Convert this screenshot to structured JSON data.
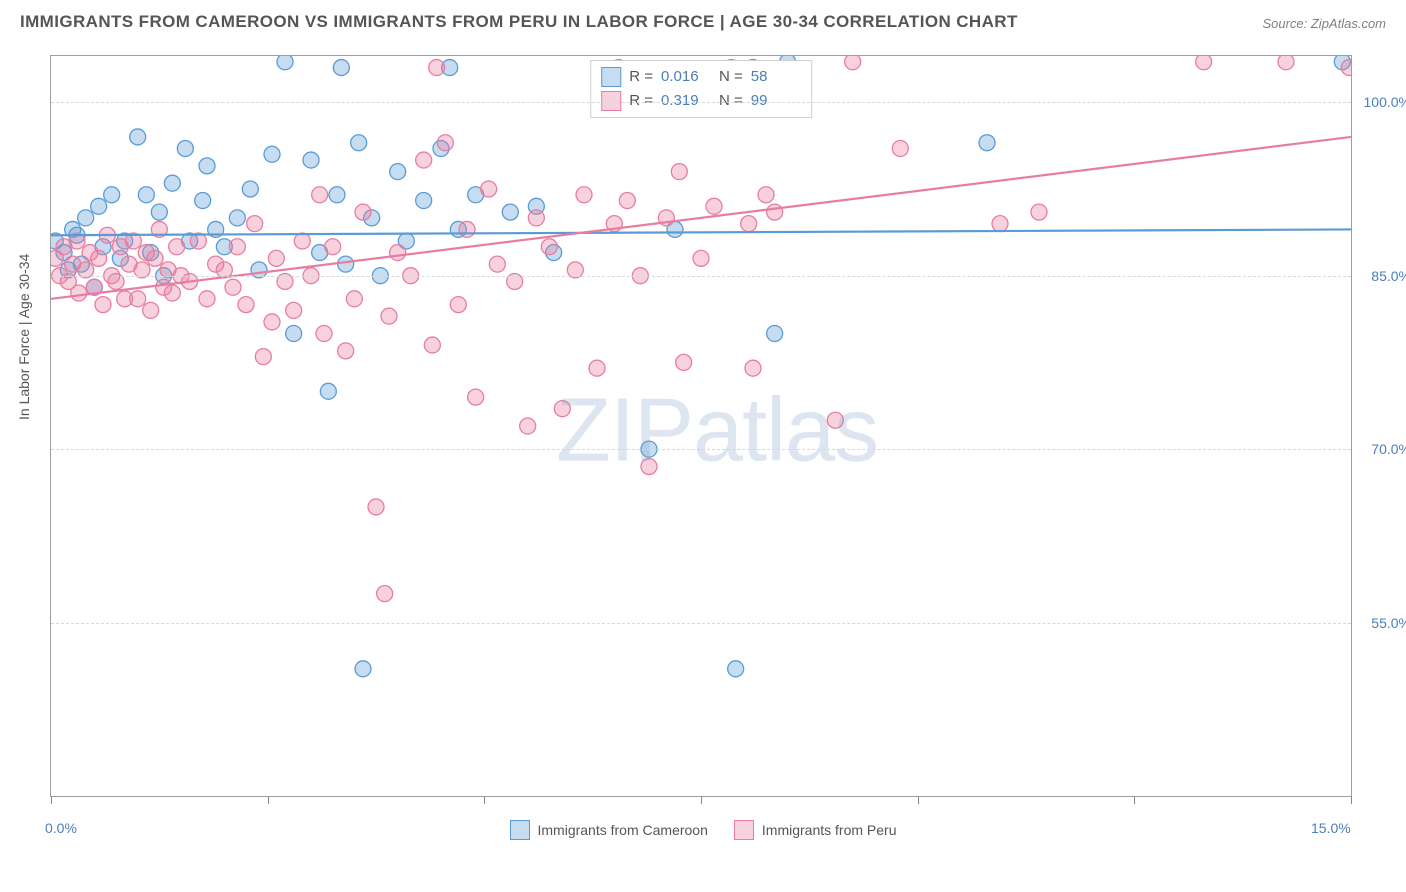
{
  "title": "IMMIGRANTS FROM CAMEROON VS IMMIGRANTS FROM PERU IN LABOR FORCE | AGE 30-34 CORRELATION CHART",
  "source": "Source: ZipAtlas.com",
  "yaxis_title": "In Labor Force | Age 30-34",
  "watermark": "ZIPatlas",
  "chart": {
    "type": "scatter",
    "xlim": [
      0,
      15
    ],
    "ylim": [
      40,
      104
    ],
    "ytick_values": [
      55,
      70,
      85,
      100
    ],
    "ytick_labels": [
      "55.0%",
      "70.0%",
      "85.0%",
      "100.0%"
    ],
    "xtick_values": [
      0,
      2.5,
      5,
      7.5,
      10,
      12.5,
      15
    ],
    "xaxis_min_label": "0.0%",
    "xaxis_max_label": "15.0%",
    "grid_color": "#d8d8d8",
    "border_color": "#9e9e9e",
    "background_color": "#ffffff",
    "marker_radius": 8,
    "marker_fill_opacity": 0.35,
    "marker_stroke_width": 1.3,
    "trend_line_width": 2.2,
    "axis_label_color": "#4a7ebb",
    "series": [
      {
        "name": "Immigrants from Cameroon",
        "color_stroke": "#5b9bd5",
        "color_fill": "#5b9bd5",
        "R": "0.016",
        "N": "58",
        "trend": {
          "x1": 0,
          "y1": 88.5,
          "x2": 15,
          "y2": 89.0
        },
        "points": [
          [
            0.05,
            88.0
          ],
          [
            0.15,
            87.0
          ],
          [
            0.2,
            85.5
          ],
          [
            0.25,
            89.0
          ],
          [
            0.3,
            88.5
          ],
          [
            0.35,
            86.0
          ],
          [
            0.4,
            90.0
          ],
          [
            0.5,
            84.0
          ],
          [
            0.55,
            91.0
          ],
          [
            0.6,
            87.5
          ],
          [
            0.7,
            92.0
          ],
          [
            0.8,
            86.5
          ],
          [
            0.85,
            88.0
          ],
          [
            1.0,
            97.0
          ],
          [
            1.1,
            92.0
          ],
          [
            1.15,
            87.0
          ],
          [
            1.25,
            90.5
          ],
          [
            1.3,
            85.0
          ],
          [
            1.4,
            93.0
          ],
          [
            1.55,
            96.0
          ],
          [
            1.6,
            88.0
          ],
          [
            1.75,
            91.5
          ],
          [
            1.8,
            94.5
          ],
          [
            1.9,
            89.0
          ],
          [
            2.0,
            87.5
          ],
          [
            2.15,
            90.0
          ],
          [
            2.3,
            92.5
          ],
          [
            2.4,
            85.5
          ],
          [
            2.55,
            95.5
          ],
          [
            2.7,
            103.5
          ],
          [
            2.8,
            80.0
          ],
          [
            3.0,
            95.0
          ],
          [
            3.1,
            87.0
          ],
          [
            3.2,
            75.0
          ],
          [
            3.3,
            92.0
          ],
          [
            3.35,
            103.0
          ],
          [
            3.4,
            86.0
          ],
          [
            3.55,
            96.5
          ],
          [
            3.6,
            51.0
          ],
          [
            3.7,
            90.0
          ],
          [
            3.8,
            85.0
          ],
          [
            4.0,
            94.0
          ],
          [
            4.1,
            88.0
          ],
          [
            4.3,
            91.5
          ],
          [
            4.5,
            96.0
          ],
          [
            4.6,
            103.0
          ],
          [
            4.7,
            89.0
          ],
          [
            4.9,
            92.0
          ],
          [
            5.3,
            90.5
          ],
          [
            5.6,
            91.0
          ],
          [
            5.8,
            87.0
          ],
          [
            6.9,
            70.0
          ],
          [
            7.2,
            89.0
          ],
          [
            7.9,
            51.0
          ],
          [
            8.1,
            103.0
          ],
          [
            8.35,
            80.0
          ],
          [
            8.5,
            103.5
          ],
          [
            10.8,
            96.5
          ],
          [
            14.9,
            103.5
          ]
        ]
      },
      {
        "name": "Immigrants from Peru",
        "color_stroke": "#e87da0",
        "color_fill": "#e87da0",
        "R": "0.319",
        "N": "99",
        "trend": {
          "x1": 0,
          "y1": 83.0,
          "x2": 15,
          "y2": 97.0
        },
        "points": [
          [
            0.05,
            86.5
          ],
          [
            0.1,
            85.0
          ],
          [
            0.15,
            87.5
          ],
          [
            0.2,
            84.5
          ],
          [
            0.25,
            86.0
          ],
          [
            0.3,
            88.0
          ],
          [
            0.32,
            83.5
          ],
          [
            0.4,
            85.5
          ],
          [
            0.45,
            87.0
          ],
          [
            0.5,
            84.0
          ],
          [
            0.55,
            86.5
          ],
          [
            0.6,
            82.5
          ],
          [
            0.65,
            88.5
          ],
          [
            0.7,
            85.0
          ],
          [
            0.75,
            84.5
          ],
          [
            0.8,
            87.5
          ],
          [
            0.85,
            83.0
          ],
          [
            0.9,
            86.0
          ],
          [
            0.95,
            88.0
          ],
          [
            1.0,
            83.0
          ],
          [
            1.05,
            85.5
          ],
          [
            1.1,
            87.0
          ],
          [
            1.15,
            82.0
          ],
          [
            1.2,
            86.5
          ],
          [
            1.25,
            89.0
          ],
          [
            1.3,
            84.0
          ],
          [
            1.35,
            85.5
          ],
          [
            1.4,
            83.5
          ],
          [
            1.45,
            87.5
          ],
          [
            1.5,
            85.0
          ],
          [
            1.6,
            84.5
          ],
          [
            1.7,
            88.0
          ],
          [
            1.8,
            83.0
          ],
          [
            1.9,
            86.0
          ],
          [
            2.0,
            85.5
          ],
          [
            2.1,
            84.0
          ],
          [
            2.15,
            87.5
          ],
          [
            2.25,
            82.5
          ],
          [
            2.35,
            89.5
          ],
          [
            2.45,
            78.0
          ],
          [
            2.55,
            81.0
          ],
          [
            2.6,
            86.5
          ],
          [
            2.7,
            84.5
          ],
          [
            2.8,
            82.0
          ],
          [
            2.9,
            88.0
          ],
          [
            3.0,
            85.0
          ],
          [
            3.1,
            92.0
          ],
          [
            3.15,
            80.0
          ],
          [
            3.25,
            87.5
          ],
          [
            3.4,
            78.5
          ],
          [
            3.5,
            83.0
          ],
          [
            3.6,
            90.5
          ],
          [
            3.75,
            65.0
          ],
          [
            3.85,
            57.5
          ],
          [
            3.9,
            81.5
          ],
          [
            4.0,
            87.0
          ],
          [
            4.15,
            85.0
          ],
          [
            4.3,
            95.0
          ],
          [
            4.4,
            79.0
          ],
          [
            4.45,
            103.0
          ],
          [
            4.55,
            96.5
          ],
          [
            4.7,
            82.5
          ],
          [
            4.8,
            89.0
          ],
          [
            4.9,
            74.5
          ],
          [
            5.05,
            92.5
          ],
          [
            5.15,
            86.0
          ],
          [
            5.35,
            84.5
          ],
          [
            5.5,
            72.0
          ],
          [
            5.6,
            90.0
          ],
          [
            5.75,
            87.5
          ],
          [
            5.9,
            73.5
          ],
          [
            6.05,
            85.5
          ],
          [
            6.15,
            92.0
          ],
          [
            6.3,
            77.0
          ],
          [
            6.5,
            89.5
          ],
          [
            6.55,
            103.0
          ],
          [
            6.65,
            91.5
          ],
          [
            6.8,
            85.0
          ],
          [
            6.9,
            68.5
          ],
          [
            7.1,
            90.0
          ],
          [
            7.25,
            94.0
          ],
          [
            7.3,
            77.5
          ],
          [
            7.5,
            86.5
          ],
          [
            7.65,
            91.0
          ],
          [
            7.85,
            103.0
          ],
          [
            8.05,
            89.5
          ],
          [
            8.1,
            77.0
          ],
          [
            8.25,
            92.0
          ],
          [
            8.35,
            90.5
          ],
          [
            9.05,
            72.5
          ],
          [
            9.25,
            103.5
          ],
          [
            9.8,
            96.0
          ],
          [
            10.95,
            89.5
          ],
          [
            11.4,
            90.5
          ],
          [
            13.3,
            103.5
          ],
          [
            14.25,
            103.5
          ],
          [
            14.98,
            103.0
          ]
        ]
      }
    ]
  },
  "bottom_legend": [
    {
      "label": "Immigrants from Cameroon",
      "stroke": "#5b9bd5",
      "fill": "rgba(91,155,213,0.35)"
    },
    {
      "label": "Immigrants from Peru",
      "stroke": "#e87da0",
      "fill": "rgba(232,125,160,0.35)"
    }
  ],
  "stats_box": {
    "rows": [
      {
        "stroke": "#5b9bd5",
        "fill": "rgba(91,155,213,0.35)",
        "R": "0.016",
        "N": "58"
      },
      {
        "stroke": "#e87da0",
        "fill": "rgba(232,125,160,0.35)",
        "R": "0.319",
        "N": "99"
      }
    ]
  }
}
